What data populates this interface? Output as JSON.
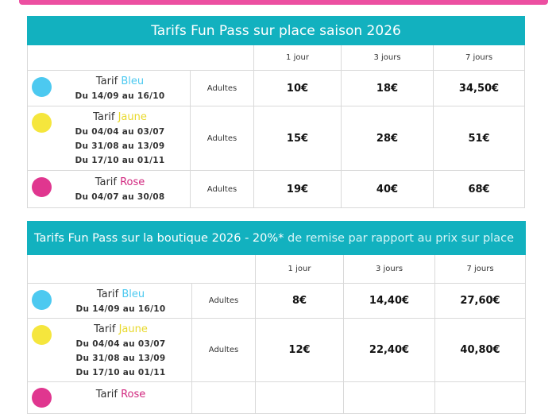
{
  "colors": {
    "accent": "#12b1bf",
    "pink": "#ec4fa1",
    "bleu": "#4cc9f0",
    "jaune": "#f5e63d",
    "rose": "#e0368f"
  },
  "table1": {
    "title": "Tarifs Fun Pass sur place saison 2026",
    "headers": [
      "1 jour",
      "3 jours",
      "7 jours"
    ],
    "rows": [
      {
        "prefix": "Tarif ",
        "color_word": "Bleu",
        "dates": [
          "Du 14/09 au 16/10"
        ],
        "audience": "Adultes",
        "prices": [
          "10€",
          "18€",
          "34,50€"
        ]
      },
      {
        "prefix": "Tarif ",
        "color_word": "Jaune",
        "dates": [
          "Du 04/04 au 03/07",
          "Du 31/08 au 13/09",
          "Du 17/10 au 01/11"
        ],
        "audience": "Adultes",
        "prices": [
          "15€",
          "28€",
          "51€"
        ]
      },
      {
        "prefix": "Tarif ",
        "color_word": "Rose",
        "dates": [
          "Du 04/07 au 30/08"
        ],
        "audience": "Adultes",
        "prices": [
          "19€",
          "40€",
          "68€"
        ]
      }
    ]
  },
  "table2": {
    "title_main": "Tarifs Fun Pass sur la boutique 2026 - 20%*",
    "title_rest": " de remise par rapport au prix sur place",
    "headers": [
      "1 jour",
      "3 jours",
      "7 jours"
    ],
    "rows": [
      {
        "prefix": "Tarif ",
        "color_word": "Bleu",
        "dates": [
          "Du 14/09 au 16/10"
        ],
        "audience": "Adultes",
        "prices": [
          "8€",
          "14,40€",
          "27,60€"
        ]
      },
      {
        "prefix": "Tarif ",
        "color_word": "Jaune",
        "dates": [
          "Du 04/04 au 03/07",
          "Du 31/08 au 13/09",
          "Du 17/10 au 01/11"
        ],
        "audience": "Adultes",
        "prices": [
          "12€",
          "22,40€",
          "40,80€"
        ]
      },
      {
        "prefix": "Tarif ",
        "color_word": "Rose",
        "dates": [],
        "audience": "",
        "prices": []
      }
    ]
  }
}
